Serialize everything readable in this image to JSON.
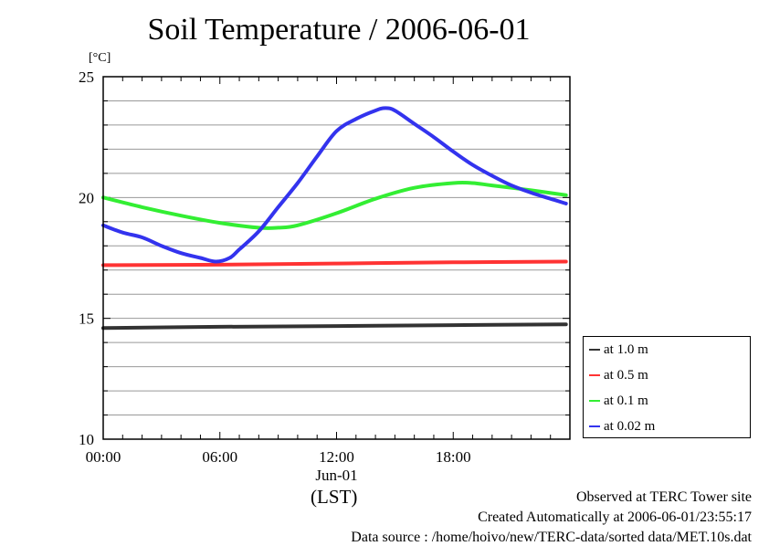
{
  "chart_data": {
    "type": "line",
    "title": "Soil Temperature / 2006-06-01",
    "ylabel": "[°C]",
    "xlabel": "(LST)",
    "xlim": [
      "00:00",
      "23:59"
    ],
    "ylim": [
      10,
      25
    ],
    "yticks": [
      10,
      15,
      20,
      25
    ],
    "xticks": [
      {
        "label": "00:00",
        "hour": 0
      },
      {
        "label": "06:00",
        "hour": 6
      },
      {
        "label": "12:00",
        "hour": 12
      },
      {
        "label": "18:00",
        "hour": 18
      }
    ],
    "date_label": "Jun-01",
    "grid": true,
    "legend_position": "right, below plot middle",
    "series": [
      {
        "name": "at 1.0 m",
        "color": "#333333",
        "x": [
          0,
          6,
          12,
          18,
          23.8
        ],
        "y": [
          14.6,
          14.65,
          14.68,
          14.72,
          14.75
        ]
      },
      {
        "name": "at 0.5 m",
        "color": "#ff3333",
        "x": [
          0,
          6,
          12,
          18,
          23.8
        ],
        "y": [
          17.2,
          17.22,
          17.27,
          17.32,
          17.35
        ]
      },
      {
        "name": "at 0.1 m",
        "color": "#33ee33",
        "x": [
          0,
          2,
          4,
          6,
          8,
          9,
          10,
          12,
          14,
          16,
          18,
          19,
          20,
          22,
          23.8
        ],
        "y": [
          20.0,
          19.6,
          19.25,
          18.95,
          18.75,
          18.75,
          18.85,
          19.35,
          19.95,
          20.4,
          20.6,
          20.6,
          20.5,
          20.3,
          20.1
        ]
      },
      {
        "name": "at 0.02 m",
        "color": "#3333ee",
        "x": [
          0,
          1,
          2,
          3,
          4,
          5,
          5.8,
          6.5,
          7,
          8,
          9,
          10,
          11,
          12,
          13,
          14,
          14.5,
          15,
          16,
          17,
          18,
          19,
          20,
          21,
          22,
          23,
          23.8
        ],
        "y": [
          18.85,
          18.55,
          18.35,
          18.0,
          17.7,
          17.5,
          17.35,
          17.5,
          17.85,
          18.6,
          19.6,
          20.6,
          21.7,
          22.75,
          23.25,
          23.6,
          23.7,
          23.6,
          23.05,
          22.5,
          21.9,
          21.35,
          20.9,
          20.5,
          20.2,
          19.95,
          19.75
        ]
      }
    ]
  },
  "footer": {
    "line1": "Observed at TERC Tower site",
    "line2": "Created Automatically at 2006-06-01/23:55:17",
    "line3": "Data source : /home/hoivo/new/TERC-data/sorted  data/MET.10s.dat"
  }
}
